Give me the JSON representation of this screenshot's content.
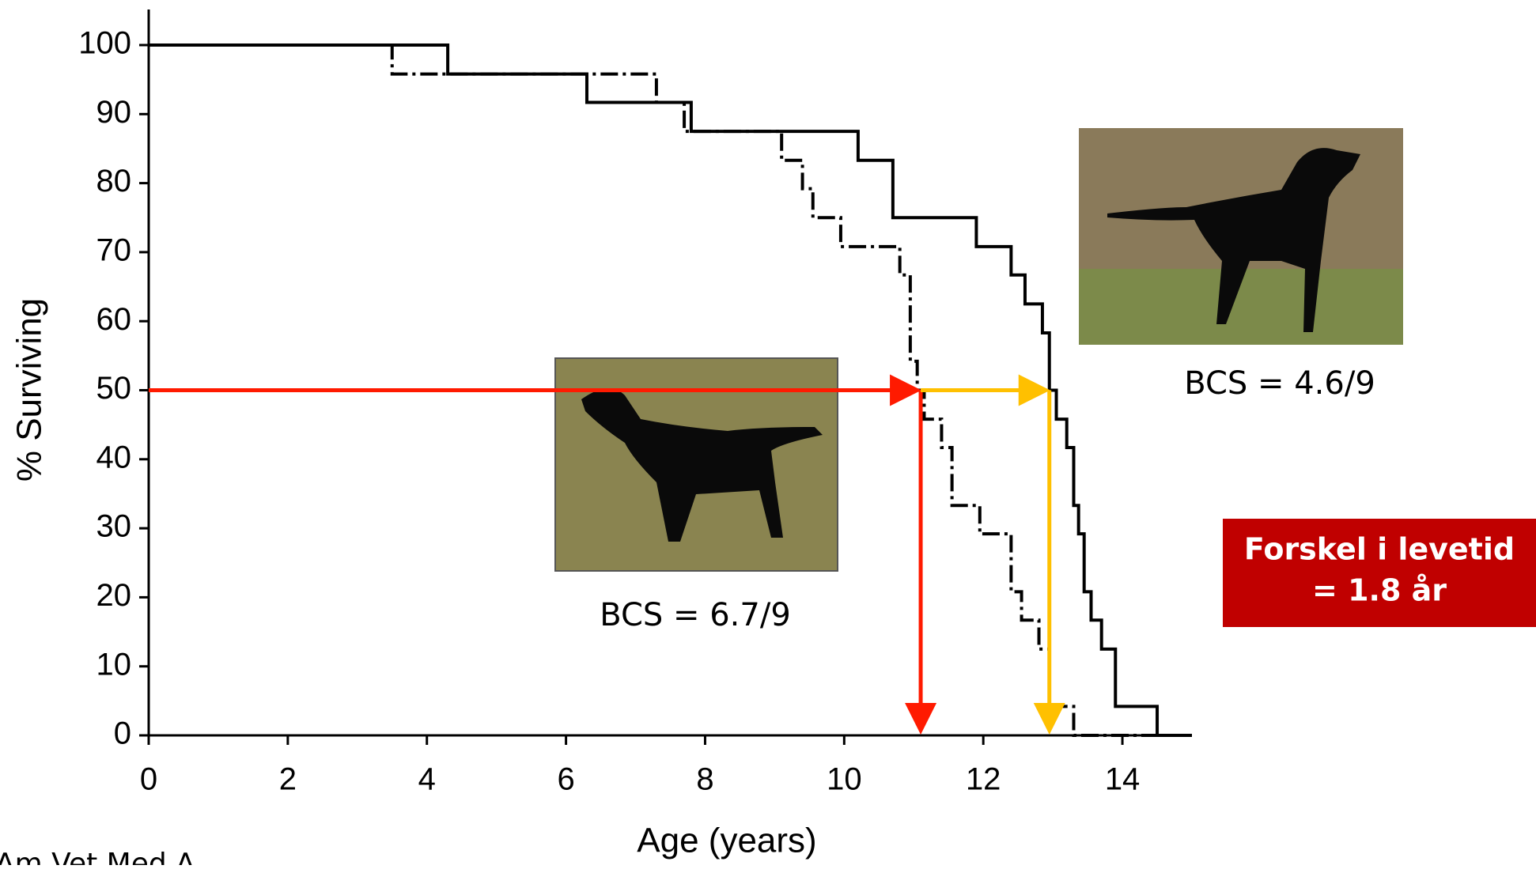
{
  "chart_data": {
    "type": "step",
    "x_label": "Age (years)",
    "y_label": "% Surviving",
    "xlim": [
      0,
      15
    ],
    "xticks": [
      0,
      2,
      4,
      6,
      8,
      10,
      12,
      14
    ],
    "ylim": [
      0,
      100
    ],
    "yticks": [
      0,
      10,
      20,
      30,
      40,
      50,
      60,
      70,
      80,
      90,
      100
    ],
    "series": [
      {
        "color": "#000000",
        "style": "solid",
        "x": [
          0,
          4.3,
          6.3,
          7.8,
          10.2,
          10.7,
          11.9,
          12.4,
          12.6,
          12.85,
          12.95,
          13.05,
          13.2,
          13.3,
          13.37,
          13.45,
          13.55,
          13.7,
          13.9,
          14.5,
          15
        ],
        "values": [
          100,
          95.8,
          91.7,
          87.5,
          83.3,
          75,
          70.8,
          66.7,
          62.5,
          58.3,
          50,
          45.8,
          41.7,
          33.3,
          29.2,
          20.8,
          16.7,
          12.5,
          4.2,
          0,
          0
        ]
      },
      {
        "color": "#000000",
        "style": "dashdot",
        "x": [
          0,
          3.5,
          7.3,
          7.7,
          9.1,
          9.4,
          9.55,
          9.95,
          10.8,
          10.95,
          11.05,
          11.15,
          11.4,
          11.55,
          11.95,
          12.4,
          12.55,
          12.8,
          12.95,
          13.3,
          15
        ],
        "values": [
          100,
          95.8,
          91.7,
          87.5,
          83.3,
          79.2,
          75,
          70.8,
          66.7,
          54.2,
          50,
          45.8,
          41.7,
          33.3,
          29.2,
          20.8,
          16.7,
          12.5,
          4.2,
          0,
          0
        ]
      }
    ],
    "reference_lines": [
      {
        "x_start": 0,
        "x": 11.1,
        "y": 50,
        "color": "#ff1a00"
      },
      {
        "x_start": 11.1,
        "x": 12.95,
        "y": 50,
        "color": "#ffc000"
      }
    ],
    "annotations": [
      "BCS = 6.7/9",
      "BCS = 4.6/9"
    ],
    "highlight": [
      "Forskel i levetid",
      "= 1.8 år"
    ],
    "source": "Am Vet Med A"
  }
}
